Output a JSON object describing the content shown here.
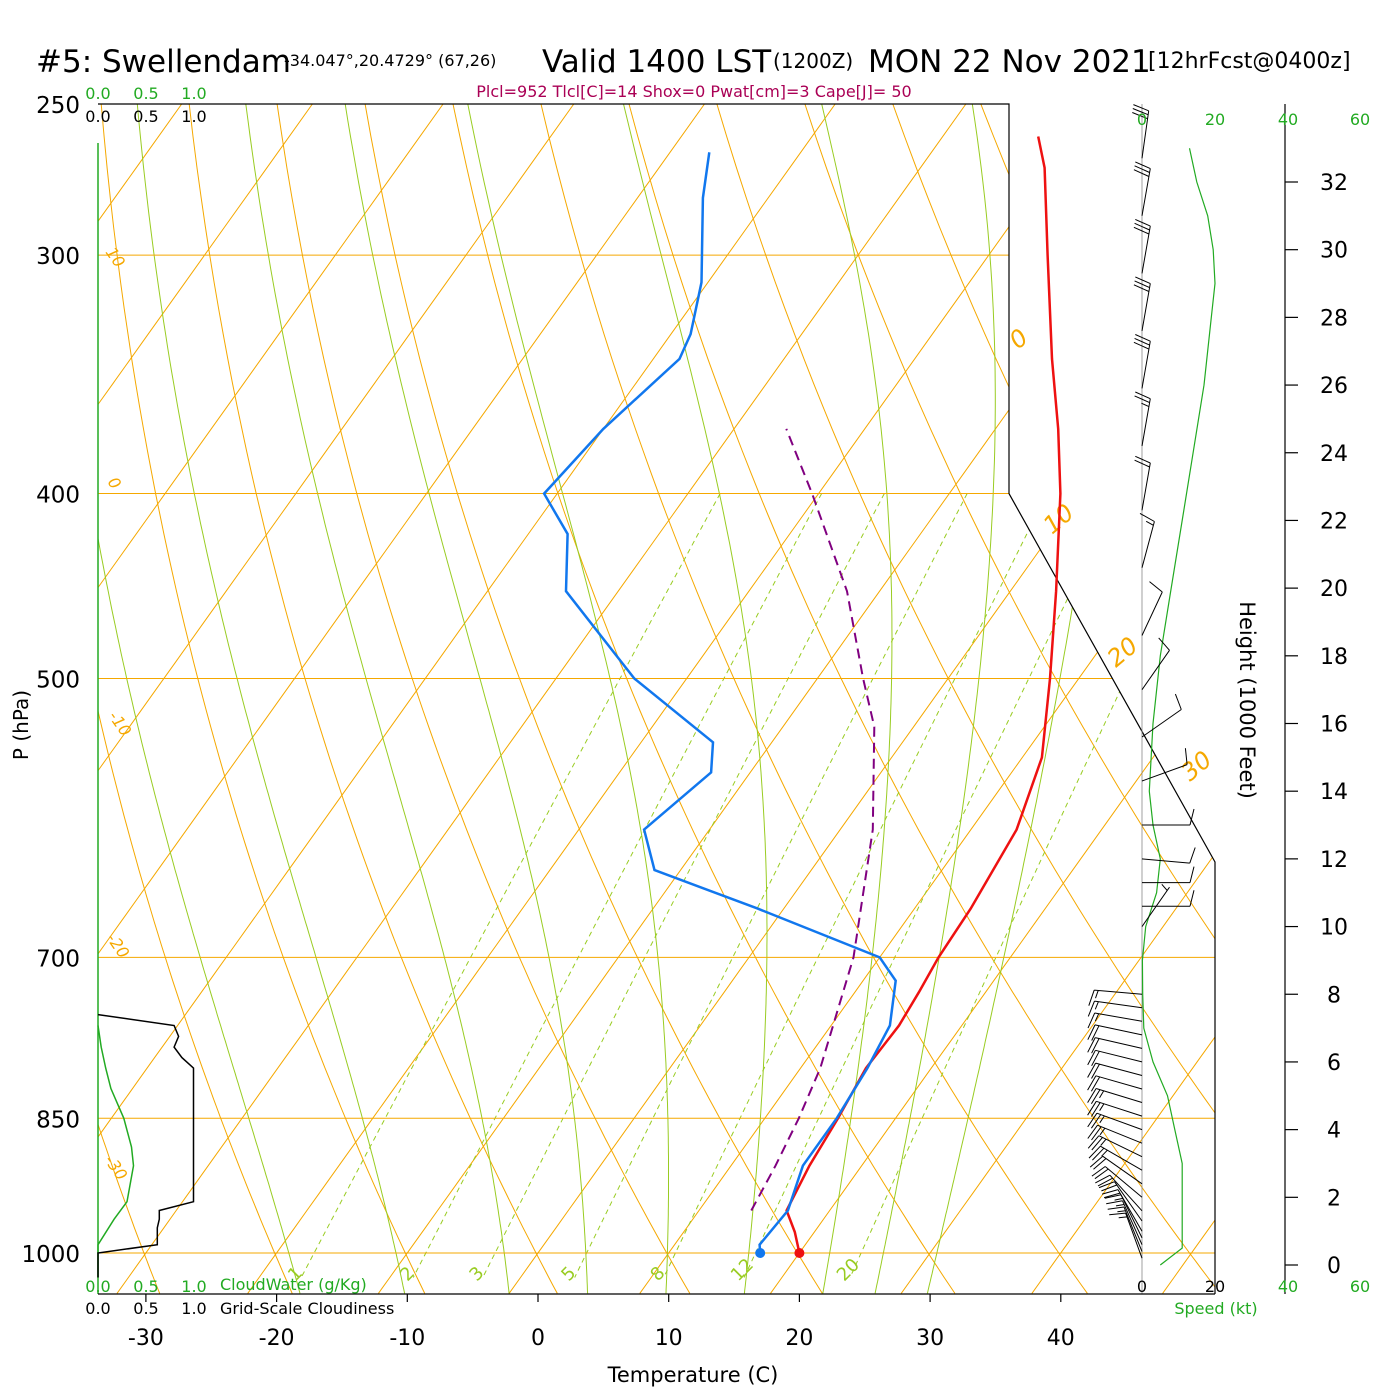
{
  "header": {
    "station": "#5: Swellendam",
    "coords": "-34.047°,20.4729° (67,26)",
    "valid_prefix": "Valid 1400 LST",
    "zulu": "(1200Z)",
    "date": "MON 22 Nov 2021",
    "forecast": "[12hrFcst@0400z]"
  },
  "indices": "Plcl=952 Tlcl[C]=14 Shox=0 Pwat[cm]=3 Cape[J]= 50",
  "colors": {
    "temperature": "#ee1111",
    "dewpoint": "#1177ee",
    "parcel": "#800080",
    "isotherm": "#f5a800",
    "dry_adiabat": "#f5a800",
    "moist_adiabat": "#99cc22",
    "mixing_ratio": "#99cc22",
    "cloud_water": "#22aa22",
    "cloudiness": "#000000",
    "indices": "#aa0055",
    "green_text": "#22aa22"
  },
  "chart_data": {
    "type": "line",
    "title": "",
    "xlabel": "Temperature (C)",
    "ylabel": "P (hPa)",
    "right_ylabel": "Height (1000 Feet)",
    "xlim": [
      -34,
      36
    ],
    "ylim_hpa": [
      1030,
      250
    ],
    "y_scale": "log",
    "x_ticks": [
      -30,
      -20,
      -10,
      0,
      10,
      20,
      30,
      40
    ],
    "pressure_ticks": [
      250,
      300,
      400,
      500,
      700,
      850,
      1000
    ],
    "height_ticks": [
      0,
      2,
      4,
      6,
      8,
      10,
      12,
      14,
      16,
      18,
      20,
      22,
      24,
      26,
      28,
      30,
      32
    ],
    "isotherm_labels": [
      "10",
      "0",
      "-10",
      "-20",
      "-30",
      "0",
      "10",
      "20",
      "30"
    ],
    "mixing_ratio_labels": [
      "1",
      "2",
      "3",
      "5",
      "8",
      "12",
      "20"
    ],
    "top_left_scales": {
      "cloud_water": [
        "0.0",
        "0.5",
        "1.0"
      ],
      "cloudiness": [
        "0.0",
        "0.5",
        "1.0"
      ]
    },
    "bottom_left_scales": {
      "cloud_water": [
        "0.0",
        "0.5",
        "1.0"
      ],
      "cloud_water_label": "CloudWater (g/Kg)",
      "cloudiness": [
        "0.0",
        "0.5",
        "1.0"
      ],
      "cloudiness_label": "Grid-Scale Cloudiness"
    },
    "wind_speed_scale": {
      "top": [
        "0",
        "20",
        "40",
        "60"
      ],
      "bottom": [
        "0",
        "20",
        "40",
        "60"
      ],
      "label": "Speed (kt)"
    },
    "series": [
      {
        "role": "temperature",
        "points": [
          [
            1000,
            20
          ],
          [
            975,
            18.5
          ],
          [
            950,
            16.7
          ],
          [
            900,
            16.0
          ],
          [
            850,
            15.6
          ],
          [
            800,
            15.0
          ],
          [
            760,
            15.2
          ],
          [
            730,
            14.9
          ],
          [
            700,
            14.5
          ],
          [
            660,
            14.3
          ],
          [
            600,
            13.5
          ],
          [
            550,
            11.5
          ],
          [
            500,
            7.8
          ],
          [
            450,
            3.5
          ],
          [
            400,
            -1.5
          ],
          [
            370,
            -5.2
          ],
          [
            340,
            -9.5
          ],
          [
            300,
            -15.5
          ],
          [
            270,
            -20.5
          ],
          [
            260,
            -22.7
          ]
        ]
      },
      {
        "role": "dewpoint",
        "points": [
          [
            1000,
            17.0
          ],
          [
            990,
            16.5
          ],
          [
            950,
            16.8
          ],
          [
            900,
            15.5
          ],
          [
            850,
            15.5
          ],
          [
            800,
            15.1
          ],
          [
            760,
            14.5
          ],
          [
            720,
            12.5
          ],
          [
            700,
            10.0
          ],
          [
            660,
            -2.0
          ],
          [
            630,
            -12.0
          ],
          [
            600,
            -15.0
          ],
          [
            560,
            -13.0
          ],
          [
            540,
            -14.5
          ],
          [
            500,
            -24.0
          ],
          [
            450,
            -34.0
          ],
          [
            420,
            -37.0
          ],
          [
            400,
            -41.0
          ],
          [
            370,
            -40.0
          ],
          [
            340,
            -38.0
          ],
          [
            330,
            -38.5
          ],
          [
            310,
            -40.5
          ],
          [
            280,
            -45.0
          ],
          [
            265,
            -47.0
          ]
        ]
      },
      {
        "role": "parcel",
        "points": [
          [
            950,
            14.0
          ],
          [
            900,
            13.4
          ],
          [
            850,
            12.6
          ],
          [
            800,
            11.5
          ],
          [
            700,
            8.0
          ],
          [
            600,
            2.5
          ],
          [
            530,
            -3.0
          ],
          [
            500,
            -6.5
          ],
          [
            450,
            -12.5
          ],
          [
            400,
            -20.5
          ],
          [
            370,
            -26.0
          ]
        ]
      },
      {
        "role": "cloud_water",
        "points": [
          [
            1030,
            0.0
          ],
          [
            990,
            0.0
          ],
          [
            960,
            0.25
          ],
          [
            940,
            0.45
          ],
          [
            900,
            0.55
          ],
          [
            880,
            0.52
          ],
          [
            850,
            0.4
          ],
          [
            820,
            0.2
          ],
          [
            800,
            0.12
          ],
          [
            780,
            0.05
          ],
          [
            760,
            0.0
          ]
        ]
      },
      {
        "role": "cloudiness",
        "points": [
          [
            1030,
            0.0
          ],
          [
            1000,
            0.0
          ],
          [
            990,
            0.92
          ],
          [
            970,
            0.92
          ],
          [
            960,
            0.95
          ],
          [
            950,
            0.95
          ],
          [
            940,
            1.48
          ],
          [
            920,
            1.48
          ],
          [
            900,
            1.48
          ],
          [
            880,
            1.48
          ],
          [
            860,
            1.48
          ],
          [
            820,
            1.48
          ],
          [
            800,
            1.48
          ],
          [
            790,
            1.3
          ],
          [
            780,
            1.18
          ],
          [
            770,
            1.25
          ],
          [
            760,
            1.18
          ],
          [
            750,
            0.0
          ]
        ]
      },
      {
        "role": "wind_speed",
        "points": [
          [
            0,
            5
          ],
          [
            0.5,
            11
          ],
          [
            1,
            11
          ],
          [
            2,
            11
          ],
          [
            3,
            11
          ],
          [
            4,
            9
          ],
          [
            5,
            7
          ],
          [
            6,
            3
          ],
          [
            7,
            0.5
          ],
          [
            8,
            0.2
          ],
          [
            9,
            0.1
          ],
          [
            10,
            1
          ],
          [
            11,
            4
          ],
          [
            12,
            5
          ],
          [
            13,
            3
          ],
          [
            14,
            2
          ],
          [
            16,
            3
          ],
          [
            18,
            5
          ],
          [
            20,
            8
          ],
          [
            22,
            11
          ],
          [
            24,
            14
          ],
          [
            26,
            17
          ],
          [
            28,
            19
          ],
          [
            29,
            20
          ],
          [
            30,
            19.5
          ],
          [
            31,
            18
          ],
          [
            32,
            15
          ],
          [
            33,
            13
          ]
        ]
      }
    ],
    "wind_barbs": [
      {
        "h": 0.2,
        "dir": 340,
        "spd": 14
      },
      {
        "h": 0.4,
        "dir": 338,
        "spd": 15
      },
      {
        "h": 0.6,
        "dir": 336,
        "spd": 16
      },
      {
        "h": 0.8,
        "dir": 334,
        "spd": 17
      },
      {
        "h": 1.0,
        "dir": 330,
        "spd": 18
      },
      {
        "h": 1.3,
        "dir": 325,
        "spd": 19
      },
      {
        "h": 1.6,
        "dir": 318,
        "spd": 20
      },
      {
        "h": 2.0,
        "dir": 310,
        "spd": 21
      },
      {
        "h": 2.4,
        "dir": 305,
        "spd": 22
      },
      {
        "h": 2.8,
        "dir": 300,
        "spd": 23
      },
      {
        "h": 3.2,
        "dir": 296,
        "spd": 24
      },
      {
        "h": 3.6,
        "dir": 292,
        "spd": 25
      },
      {
        "h": 4.0,
        "dir": 290,
        "spd": 25
      },
      {
        "h": 4.4,
        "dir": 288,
        "spd": 24
      },
      {
        "h": 4.8,
        "dir": 287,
        "spd": 23
      },
      {
        "h": 5.2,
        "dir": 286,
        "spd": 22
      },
      {
        "h": 5.6,
        "dir": 285,
        "spd": 21
      },
      {
        "h": 6.0,
        "dir": 284,
        "spd": 20
      },
      {
        "h": 6.4,
        "dir": 283,
        "spd": 19
      },
      {
        "h": 6.8,
        "dir": 282,
        "spd": 18
      },
      {
        "h": 7.2,
        "dir": 280,
        "spd": 17
      },
      {
        "h": 7.6,
        "dir": 278,
        "spd": 15
      },
      {
        "h": 8.0,
        "dir": 275,
        "spd": 13
      },
      {
        "h": 10.0,
        "dir": 35,
        "spd": 4
      },
      {
        "h": 10.6,
        "dir": 90,
        "spd": 10
      },
      {
        "h": 11.3,
        "dir": 90,
        "spd": 10
      },
      {
        "h": 12.0,
        "dir": 95,
        "spd": 11
      },
      {
        "h": 13.0,
        "dir": 90,
        "spd": 12
      },
      {
        "h": 14.3,
        "dir": 70,
        "spd": 12
      },
      {
        "h": 15.6,
        "dir": 55,
        "spd": 11
      },
      {
        "h": 17.0,
        "dir": 35,
        "spd": 10
      },
      {
        "h": 18.6,
        "dir": 25,
        "spd": 12
      },
      {
        "h": 20.6,
        "dir": 15,
        "spd": 17
      },
      {
        "h": 22.3,
        "dir": 10,
        "spd": 20
      },
      {
        "h": 24.2,
        "dir": 10,
        "spd": 25
      },
      {
        "h": 25.9,
        "dir": 10,
        "spd": 29
      },
      {
        "h": 27.6,
        "dir": 10,
        "spd": 32
      },
      {
        "h": 29.3,
        "dir": 10,
        "spd": 32
      },
      {
        "h": 31.0,
        "dir": 10,
        "spd": 30
      },
      {
        "h": 32.7,
        "dir": 8,
        "spd": 28
      }
    ]
  }
}
